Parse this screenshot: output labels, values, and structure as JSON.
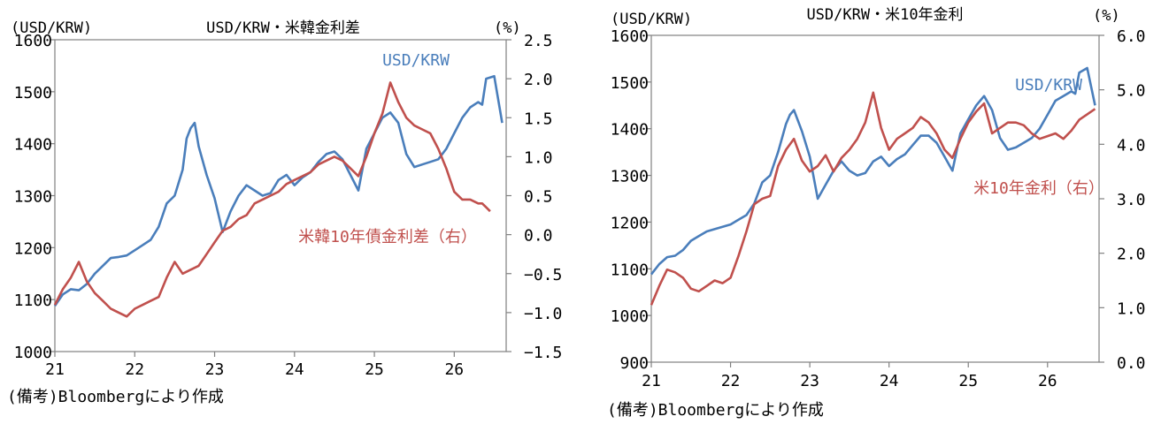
{
  "chart_data": [
    {
      "type": "line",
      "title": "USD/KRW・米韓金利差",
      "left_unit": "(USD/KRW)",
      "right_unit": "(%)",
      "x_tick_labels": [
        "21",
        "22",
        "23",
        "24",
        "25",
        "26"
      ],
      "x_tick_values": [
        2021,
        2022,
        2023,
        2024,
        2025,
        2026
      ],
      "xlim": [
        2021,
        2026.65
      ],
      "ylim_left": [
        1000,
        1600
      ],
      "ylim_right": [
        -1.5,
        2.5
      ],
      "y_left_ticks": [
        "1000",
        "1100",
        "1200",
        "1300",
        "1400",
        "1500",
        "1600"
      ],
      "y_right_ticks": [
        "−1.5",
        "−1.0",
        "−0.5",
        "0.0",
        "0.5",
        "1.0",
        "1.5",
        "2.0",
        "2.5"
      ],
      "note": "(備考)Bloombergにより作成",
      "series": [
        {
          "name": "USD/KRW",
          "axis": "left",
          "color": "#4a7ebb",
          "x": [
            2021.0,
            2021.1,
            2021.2,
            2021.3,
            2021.4,
            2021.5,
            2021.6,
            2021.7,
            2021.8,
            2021.9,
            2022.0,
            2022.1,
            2022.2,
            2022.3,
            2022.4,
            2022.5,
            2022.6,
            2022.65,
            2022.7,
            2022.75,
            2022.8,
            2022.9,
            2023.0,
            2023.1,
            2023.2,
            2023.3,
            2023.4,
            2023.5,
            2023.6,
            2023.7,
            2023.8,
            2023.9,
            2024.0,
            2024.1,
            2024.2,
            2024.3,
            2024.4,
            2024.5,
            2024.6,
            2024.7,
            2024.8,
            2024.9,
            2025.0,
            2025.1,
            2025.2,
            2025.3,
            2025.4,
            2025.5,
            2025.6,
            2025.7,
            2025.8,
            2025.9,
            2026.0,
            2026.1,
            2026.2,
            2026.3,
            2026.35,
            2026.4,
            2026.5,
            2026.6
          ],
          "values": [
            1088,
            1110,
            1120,
            1118,
            1130,
            1150,
            1165,
            1180,
            1182,
            1185,
            1195,
            1205,
            1215,
            1240,
            1285,
            1300,
            1350,
            1410,
            1430,
            1440,
            1395,
            1340,
            1295,
            1230,
            1270,
            1300,
            1320,
            1310,
            1300,
            1305,
            1330,
            1340,
            1320,
            1335,
            1345,
            1365,
            1380,
            1385,
            1370,
            1340,
            1310,
            1390,
            1420,
            1450,
            1460,
            1440,
            1380,
            1355,
            1360,
            1365,
            1370,
            1390,
            1420,
            1450,
            1470,
            1480,
            1475,
            1525,
            1530,
            1440
          ]
        },
        {
          "name": "米韓10年債金利差（右）",
          "axis": "right",
          "color": "#c0504d",
          "x": [
            2021.0,
            2021.1,
            2021.2,
            2021.3,
            2021.4,
            2021.5,
            2021.6,
            2021.7,
            2021.8,
            2021.9,
            2022.0,
            2022.1,
            2022.2,
            2022.3,
            2022.4,
            2022.5,
            2022.6,
            2022.7,
            2022.8,
            2022.9,
            2023.0,
            2023.1,
            2023.2,
            2023.3,
            2023.4,
            2023.5,
            2023.6,
            2023.7,
            2023.8,
            2023.9,
            2024.0,
            2024.1,
            2024.2,
            2024.3,
            2024.4,
            2024.5,
            2024.6,
            2024.7,
            2024.8,
            2024.9,
            2025.0,
            2025.1,
            2025.2,
            2025.3,
            2025.4,
            2025.5,
            2025.6,
            2025.7,
            2025.8,
            2025.9,
            2026.0,
            2026.1,
            2026.2,
            2026.3,
            2026.35,
            2026.4,
            2026.45
          ],
          "values": [
            -0.9,
            -0.7,
            -0.55,
            -0.35,
            -0.6,
            -0.75,
            -0.85,
            -0.95,
            -1.0,
            -1.05,
            -0.95,
            -0.9,
            -0.85,
            -0.8,
            -0.55,
            -0.35,
            -0.5,
            -0.45,
            -0.4,
            -0.25,
            -0.1,
            0.05,
            0.1,
            0.2,
            0.25,
            0.4,
            0.45,
            0.5,
            0.55,
            0.65,
            0.7,
            0.75,
            0.8,
            0.9,
            0.95,
            1.0,
            0.95,
            0.85,
            0.75,
            1.0,
            1.3,
            1.55,
            1.95,
            1.7,
            1.5,
            1.4,
            1.35,
            1.3,
            1.1,
            0.85,
            0.55,
            0.45,
            0.45,
            0.4,
            0.4,
            0.35,
            0.3
          ]
        }
      ]
    },
    {
      "type": "line",
      "title": "USD/KRW・米10年金利",
      "left_unit": "(USD/KRW)",
      "right_unit": "(%)",
      "x_tick_labels": [
        "21",
        "22",
        "23",
        "24",
        "25",
        "26"
      ],
      "x_tick_values": [
        2021,
        2022,
        2023,
        2024,
        2025,
        2026
      ],
      "xlim": [
        2021,
        2026.65
      ],
      "ylim_left": [
        900,
        1600
      ],
      "ylim_right": [
        0.0,
        6.0
      ],
      "y_left_ticks": [
        "900",
        "1000",
        "1100",
        "1200",
        "1300",
        "1400",
        "1500",
        "1600"
      ],
      "y_right_ticks": [
        "0.0",
        "1.0",
        "2.0",
        "3.0",
        "4.0",
        "5.0",
        "6.0"
      ],
      "note": "(備考)Bloombergにより作成",
      "series": [
        {
          "name": "USD/KRW",
          "axis": "left",
          "color": "#4a7ebb",
          "x": [
            2021.0,
            2021.1,
            2021.2,
            2021.3,
            2021.4,
            2021.5,
            2021.6,
            2021.7,
            2021.8,
            2021.9,
            2022.0,
            2022.1,
            2022.2,
            2022.3,
            2022.4,
            2022.5,
            2022.6,
            2022.7,
            2022.75,
            2022.8,
            2022.9,
            2023.0,
            2023.1,
            2023.2,
            2023.3,
            2023.4,
            2023.5,
            2023.6,
            2023.7,
            2023.8,
            2023.9,
            2024.0,
            2024.1,
            2024.2,
            2024.3,
            2024.4,
            2024.5,
            2024.6,
            2024.7,
            2024.8,
            2024.9,
            2025.0,
            2025.1,
            2025.2,
            2025.3,
            2025.4,
            2025.5,
            2025.6,
            2025.7,
            2025.8,
            2025.9,
            2026.0,
            2026.1,
            2026.2,
            2026.3,
            2026.35,
            2026.4,
            2026.5,
            2026.6
          ],
          "values": [
            1088,
            1110,
            1125,
            1128,
            1140,
            1160,
            1170,
            1180,
            1185,
            1190,
            1195,
            1205,
            1215,
            1240,
            1285,
            1300,
            1350,
            1410,
            1430,
            1440,
            1395,
            1340,
            1250,
            1280,
            1310,
            1330,
            1310,
            1300,
            1305,
            1330,
            1340,
            1320,
            1335,
            1345,
            1365,
            1385,
            1385,
            1370,
            1340,
            1310,
            1390,
            1420,
            1450,
            1470,
            1440,
            1380,
            1355,
            1360,
            1370,
            1380,
            1400,
            1430,
            1460,
            1470,
            1480,
            1475,
            1520,
            1530,
            1450
          ]
        },
        {
          "name": "米10年金利（右）",
          "axis": "right",
          "color": "#c0504d",
          "x": [
            2021.0,
            2021.1,
            2021.2,
            2021.3,
            2021.4,
            2021.5,
            2021.6,
            2021.7,
            2021.8,
            2021.9,
            2022.0,
            2022.1,
            2022.2,
            2022.3,
            2022.4,
            2022.5,
            2022.6,
            2022.7,
            2022.8,
            2022.9,
            2023.0,
            2023.1,
            2023.2,
            2023.3,
            2023.4,
            2023.5,
            2023.6,
            2023.7,
            2023.8,
            2023.9,
            2024.0,
            2024.1,
            2024.2,
            2024.3,
            2024.4,
            2024.5,
            2024.6,
            2024.7,
            2024.8,
            2024.9,
            2025.0,
            2025.1,
            2025.2,
            2025.3,
            2025.4,
            2025.5,
            2025.6,
            2025.7,
            2025.8,
            2025.9,
            2026.0,
            2026.1,
            2026.2,
            2026.3,
            2026.4,
            2026.5,
            2026.6
          ],
          "values": [
            1.05,
            1.4,
            1.7,
            1.65,
            1.55,
            1.35,
            1.3,
            1.4,
            1.5,
            1.45,
            1.55,
            1.95,
            2.4,
            2.9,
            3.0,
            3.05,
            3.6,
            3.9,
            4.1,
            3.7,
            3.5,
            3.6,
            3.8,
            3.5,
            3.75,
            3.9,
            4.1,
            4.4,
            4.95,
            4.3,
            3.9,
            4.1,
            4.2,
            4.3,
            4.5,
            4.4,
            4.2,
            3.9,
            3.75,
            4.1,
            4.4,
            4.6,
            4.75,
            4.2,
            4.3,
            4.4,
            4.4,
            4.35,
            4.2,
            4.1,
            4.15,
            4.2,
            4.1,
            4.25,
            4.45,
            4.55,
            4.65
          ]
        }
      ]
    }
  ]
}
